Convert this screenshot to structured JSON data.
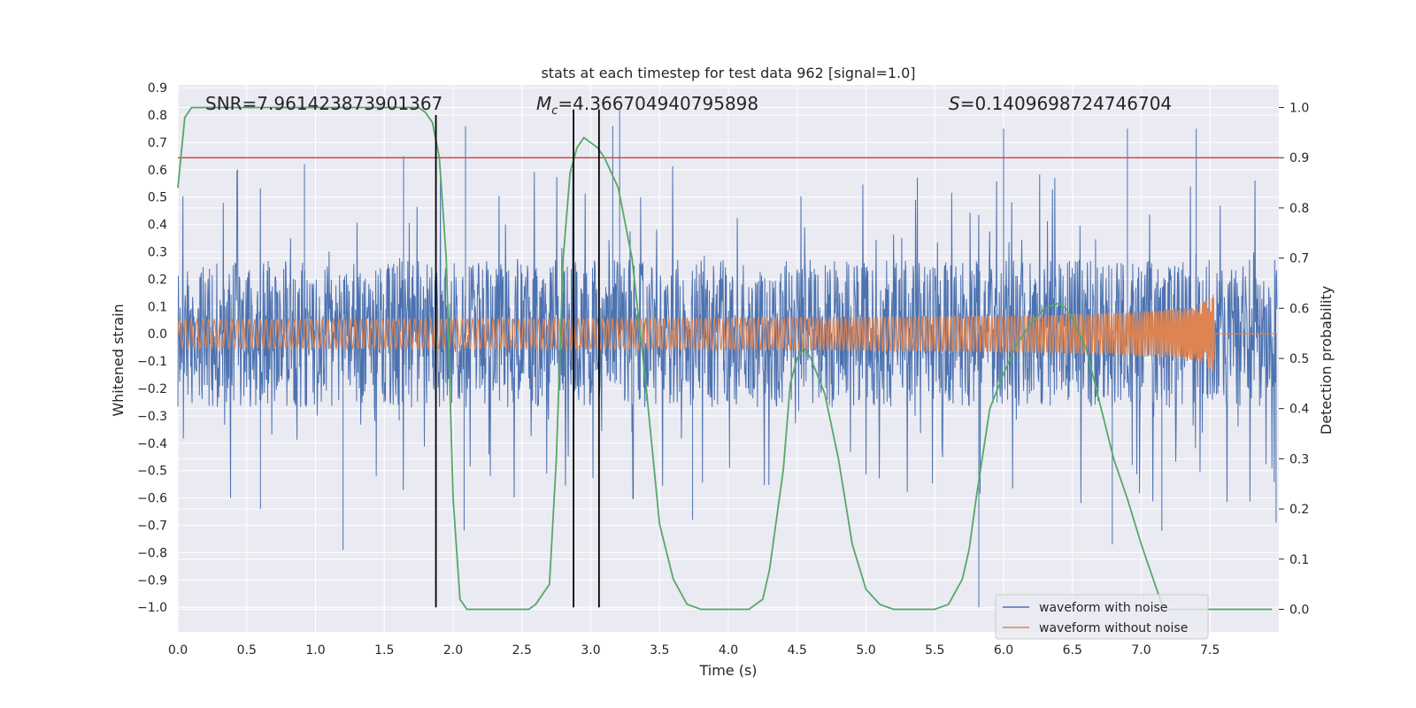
{
  "chart_data": {
    "type": "line",
    "title": "stats at each timestep for test data 962 [signal=1.0]",
    "xlabel": "Time (s)",
    "ylabel": "Whitened strain",
    "y2label": "Detection probability",
    "xlim": [
      0.0,
      8.0
    ],
    "ylim": [
      -1.09,
      0.91
    ],
    "y2lim": [
      -0.045,
      1.045
    ],
    "xticks": [
      0.0,
      0.5,
      1.0,
      1.5,
      2.0,
      2.5,
      3.0,
      3.5,
      4.0,
      4.5,
      5.0,
      5.5,
      6.0,
      6.5,
      7.0,
      7.5
    ],
    "xtick_labels": [
      "0.0",
      "0.5",
      "1.0",
      "1.5",
      "2.0",
      "2.5",
      "3.0",
      "3.5",
      "4.0",
      "4.5",
      "5.0",
      "5.5",
      "6.0",
      "6.5",
      "7.0",
      "7.5"
    ],
    "yticks": [
      0.9,
      0.8,
      0.7,
      0.6,
      0.5,
      0.4,
      0.3,
      0.2,
      0.1,
      0.0,
      -0.1,
      -0.2,
      -0.3,
      -0.4,
      -0.5,
      -0.6,
      -0.7,
      -0.8,
      -0.9,
      -1.0
    ],
    "ytick_labels": [
      "0.9",
      "0.8",
      "0.7",
      "0.6",
      "0.5",
      "0.4",
      "0.3",
      "0.2",
      "0.1",
      "0.0",
      "−0.1",
      "−0.2",
      "−0.3",
      "−0.4",
      "−0.5",
      "−0.6",
      "−0.7",
      "−0.8",
      "−0.9",
      "−1.0"
    ],
    "y2ticks": [
      1.0,
      0.9,
      0.8,
      0.7,
      0.6,
      0.5,
      0.4,
      0.3,
      0.2,
      0.1,
      0.0
    ],
    "y2tick_labels": [
      "1.0",
      "0.9",
      "0.8",
      "0.7",
      "0.6",
      "0.5",
      "0.4",
      "0.3",
      "0.2",
      "0.1",
      "0.0"
    ],
    "grid": true,
    "annotations": {
      "snr": "SNR=7.961423873901367",
      "mc_symbol": "M",
      "mc_sub": "c",
      "mc_value": "=4.366704940795898",
      "s_symbol": "S",
      "s_value": "=0.1409698724746704"
    },
    "threshold_line": {
      "axis": "y2",
      "value": 0.9,
      "color": "#c44e52"
    },
    "vertical_lines": [
      {
        "x": 1.875,
        "from": -1.0,
        "to": 0.8
      },
      {
        "x": 2.875,
        "from": -1.0,
        "to": 0.82
      },
      {
        "x": 3.06,
        "from": -1.0,
        "to": 0.82
      }
    ],
    "series": [
      {
        "name": "waveform with noise",
        "color": "#4c72b0",
        "axis": "y",
        "description": "whitened noisy strain, dense band roughly ±0.27 with spikes to about ±0.8",
        "band": 0.27,
        "peaks": [
          {
            "x": 1.2,
            "y": -0.79
          },
          {
            "x": 0.92,
            "y": 0.62
          },
          {
            "x": 1.64,
            "y": 0.65
          },
          {
            "x": 2.08,
            "y": -0.72
          },
          {
            "x": 2.09,
            "y": 0.76
          },
          {
            "x": 3.21,
            "y": 0.82
          },
          {
            "x": 3.16,
            "y": 0.76
          },
          {
            "x": 3.74,
            "y": -0.68
          },
          {
            "x": 5.82,
            "y": -1.0
          },
          {
            "x": 6.0,
            "y": 0.75
          },
          {
            "x": 6.9,
            "y": 0.75
          },
          {
            "x": 7.4,
            "y": 0.75
          },
          {
            "x": 7.15,
            "y": -0.72
          },
          {
            "x": 6.79,
            "y": -0.77
          },
          {
            "x": 0.6,
            "y": -0.64
          },
          {
            "x": 7.98,
            "y": -0.69
          }
        ]
      },
      {
        "name": "waveform without noise",
        "color": "#dd8452",
        "axis": "y",
        "description": "chirp signal, amplitude ~0.02 growing to ~0.17 near merger at t=7.53 s, then flat",
        "merger_time": 7.53,
        "amplitude_start": 0.02,
        "amplitude_end": 0.17
      },
      {
        "name": "detection probability",
        "color": "#55a868",
        "axis": "y2",
        "x": [
          0.0,
          0.05,
          0.1,
          0.2,
          0.4,
          0.8,
          1.2,
          1.6,
          1.75,
          1.8,
          1.85,
          1.9,
          1.95,
          2.0,
          2.05,
          2.1,
          2.2,
          2.4,
          2.55,
          2.6,
          2.7,
          2.75,
          2.8,
          2.85,
          2.9,
          2.95,
          3.0,
          3.05,
          3.1,
          3.2,
          3.3,
          3.4,
          3.5,
          3.6,
          3.7,
          3.8,
          4.0,
          4.15,
          4.25,
          4.3,
          4.4,
          4.45,
          4.5,
          4.55,
          4.6,
          4.7,
          4.8,
          4.9,
          5.0,
          5.1,
          5.2,
          5.5,
          5.6,
          5.7,
          5.75,
          5.8,
          5.9,
          6.0,
          6.1,
          6.2,
          6.3,
          6.4,
          6.45,
          6.5,
          6.6,
          6.7,
          6.8,
          6.9,
          7.0,
          7.1,
          7.15,
          7.2,
          7.3,
          7.5,
          7.95
        ],
        "values": [
          0.84,
          0.98,
          1.0,
          1.0,
          1.0,
          1.0,
          1.0,
          1.0,
          1.0,
          0.99,
          0.97,
          0.9,
          0.7,
          0.22,
          0.02,
          0.0,
          0.0,
          0.0,
          0.0,
          0.01,
          0.05,
          0.3,
          0.7,
          0.87,
          0.92,
          0.94,
          0.93,
          0.92,
          0.9,
          0.84,
          0.7,
          0.45,
          0.17,
          0.06,
          0.01,
          0.0,
          0.0,
          0.0,
          0.02,
          0.08,
          0.28,
          0.45,
          0.5,
          0.52,
          0.5,
          0.43,
          0.3,
          0.13,
          0.04,
          0.01,
          0.0,
          0.0,
          0.01,
          0.06,
          0.12,
          0.22,
          0.4,
          0.47,
          0.53,
          0.57,
          0.6,
          0.61,
          0.6,
          0.58,
          0.52,
          0.41,
          0.3,
          0.22,
          0.13,
          0.05,
          0.01,
          0.0,
          0.0,
          0.0,
          0.0
        ]
      }
    ],
    "legend": {
      "placement": "lower-right",
      "entries": [
        {
          "label": "waveform with noise",
          "color": "#4c72b0"
        },
        {
          "label": "waveform without noise",
          "color": "#dd8452"
        }
      ]
    },
    "colors": {
      "plot_background": "#eaeaf2",
      "grid": "#ffffff",
      "vertical_lines": "#000000"
    }
  }
}
